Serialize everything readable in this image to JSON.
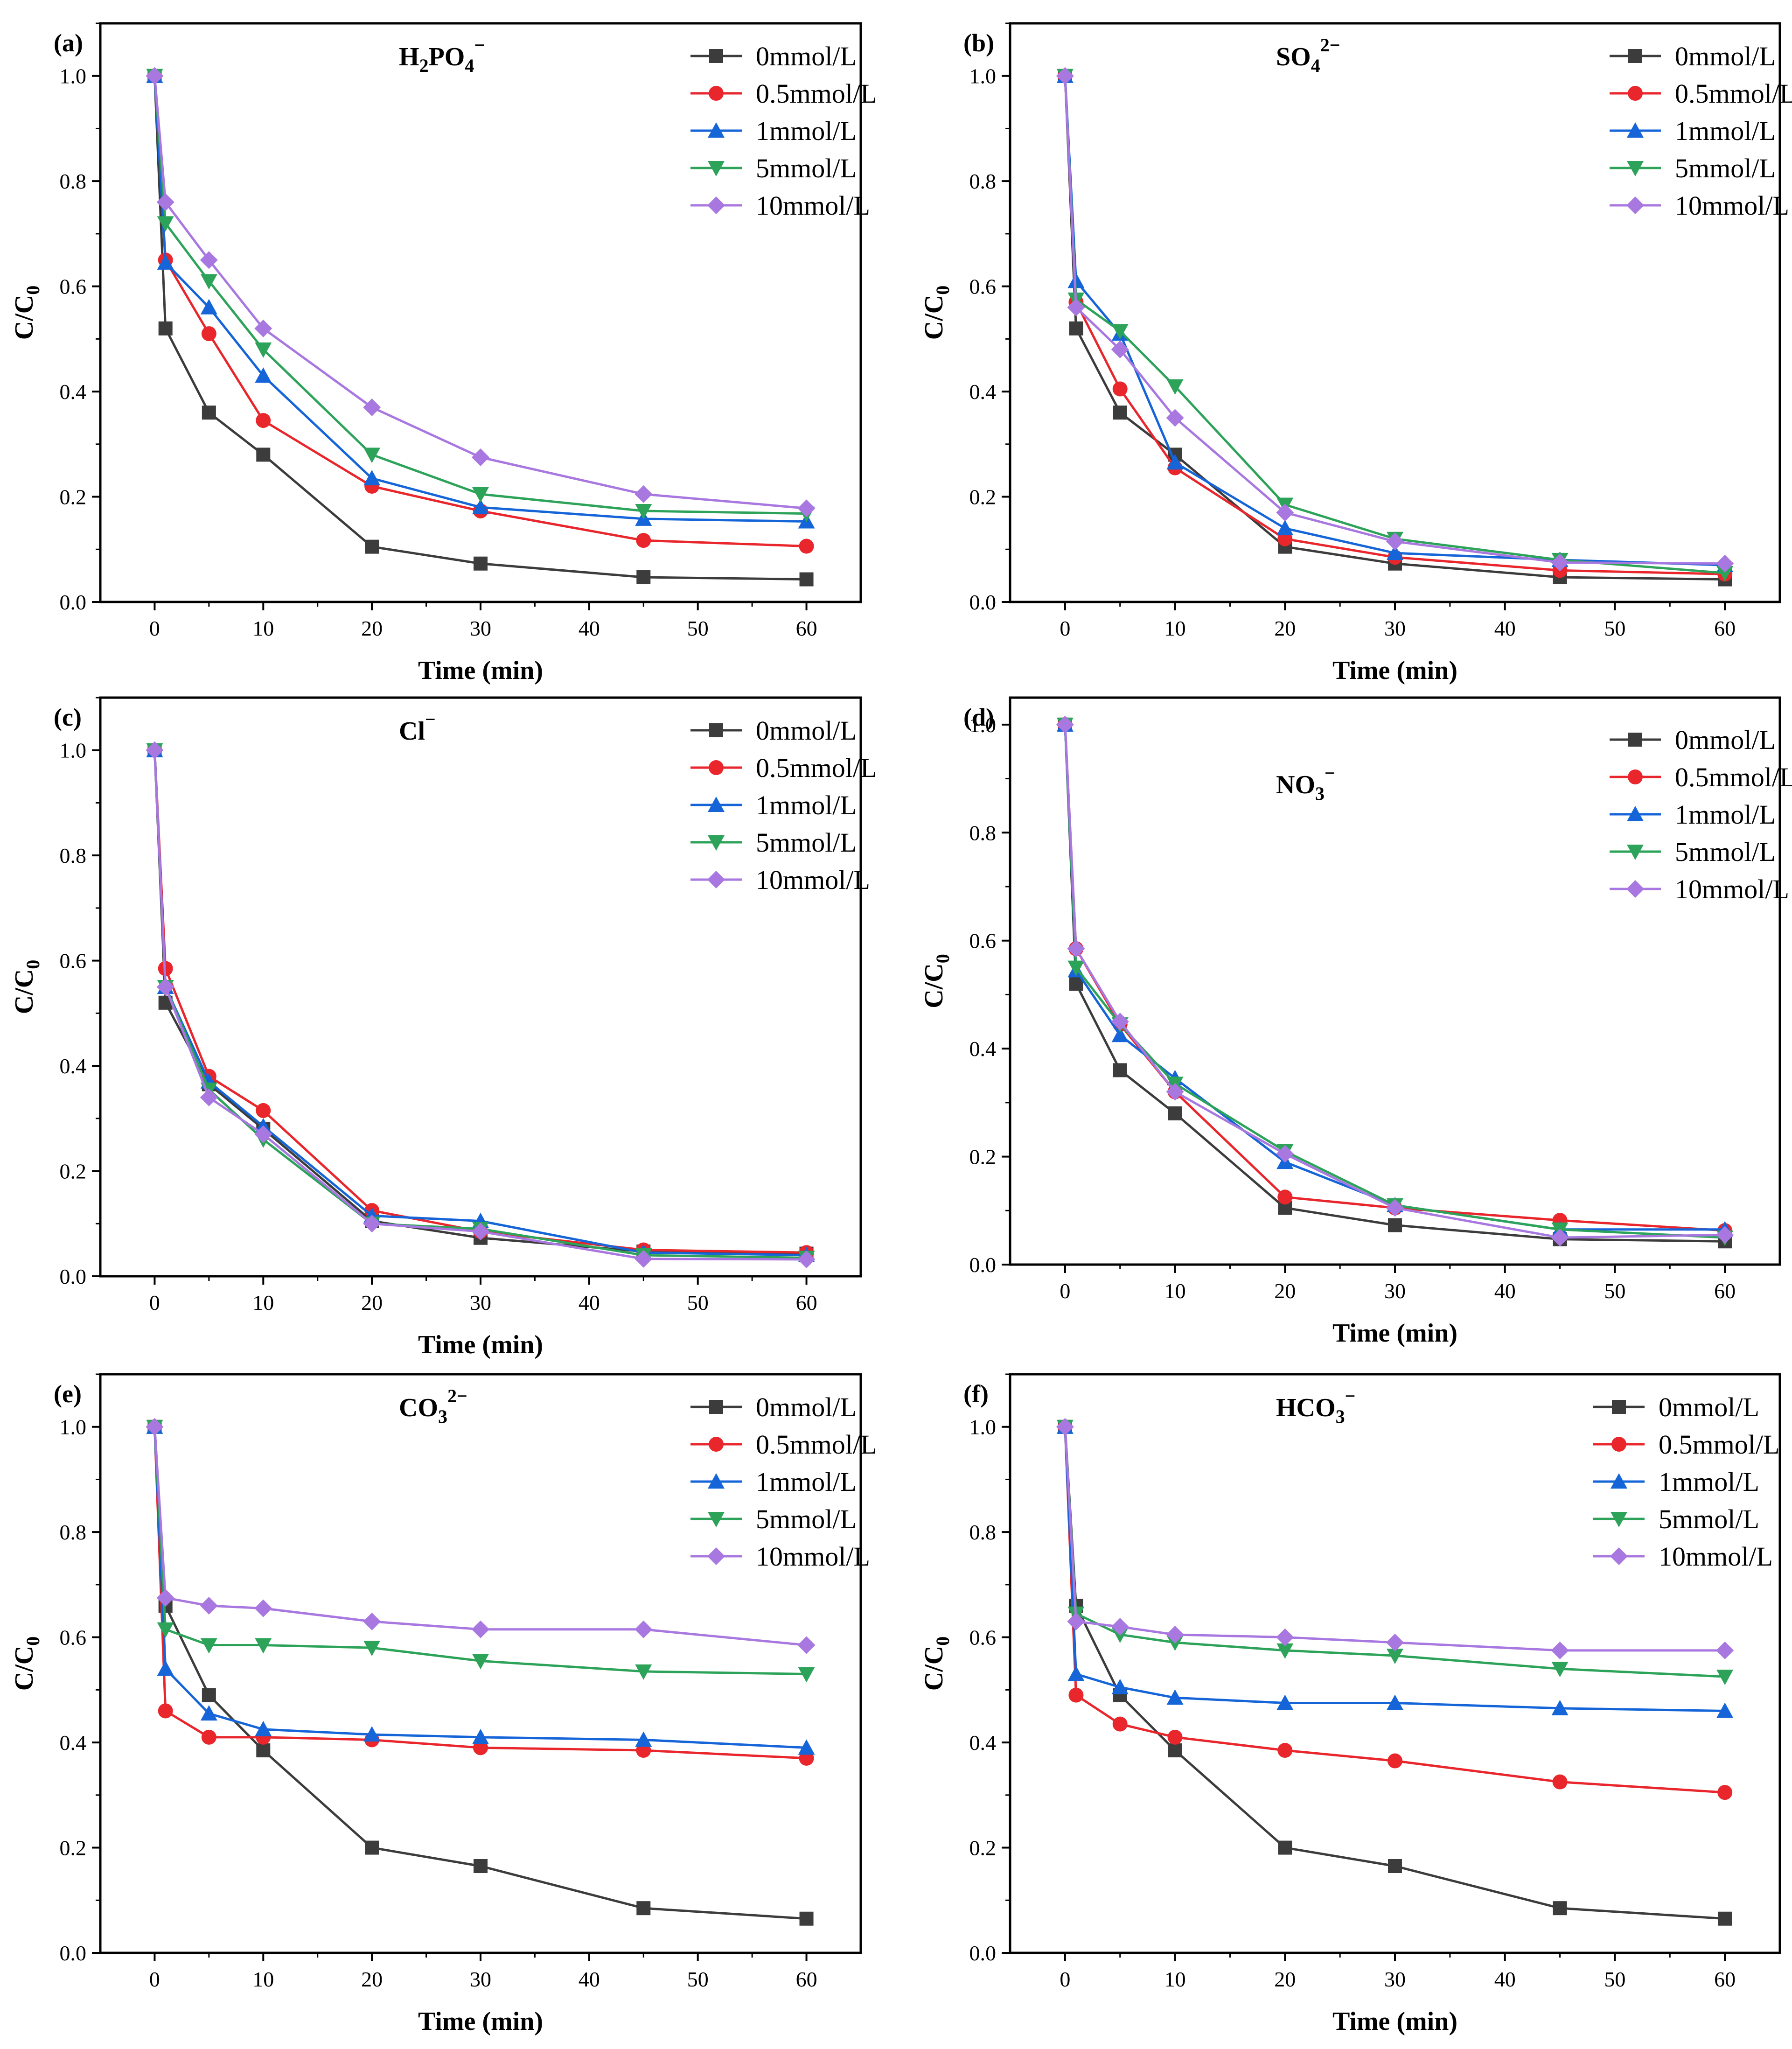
{
  "figure": {
    "colors": {
      "0mmol/L": "#3c3c3c",
      "0.5mmol/L": "#e8262c",
      "1mmol/L": "#1565d8",
      "5mmol/L": "#2da35a",
      "10mmol/L": "#a878e0"
    },
    "markers": {
      "0mmol/L": "square",
      "0.5mmol/L": "circle",
      "1mmol/L": "triangle-up",
      "5mmol/L": "triangle-down",
      "10mmol/L": "diamond"
    }
  },
  "chart_data": [
    {
      "type": "line",
      "panel": "(a)",
      "title": "H2PO4−",
      "title_parts": {
        "base": "H",
        "sub1": "2",
        "mid": "PO",
        "sub2": "4",
        "sup": "−"
      },
      "xlabel": "Time (min)",
      "ylabel": "C/C0",
      "xlim": [
        -5,
        65
      ],
      "ylim": [
        0,
        1.1
      ],
      "xticks": [
        0,
        10,
        20,
        30,
        40,
        50,
        60
      ],
      "yticks": [
        0.0,
        0.2,
        0.4,
        0.6,
        0.8,
        1.0
      ],
      "xtick_labels": [
        "0",
        "10",
        "20",
        "30",
        "40",
        "50",
        "60"
      ],
      "ytick_labels": [
        "0.0",
        "0.2",
        "0.4",
        "0.6",
        "0.8",
        "1.0"
      ],
      "legend": "top-right",
      "x": [
        0,
        1,
        5,
        10,
        20,
        30,
        45,
        60
      ],
      "series": [
        {
          "name": "0mmol/L",
          "values": [
            1.0,
            0.52,
            0.36,
            0.28,
            0.105,
            0.073,
            0.047,
            0.043
          ]
        },
        {
          "name": "0.5mmol/L",
          "values": [
            1.0,
            0.65,
            0.51,
            0.345,
            0.22,
            0.173,
            0.117,
            0.106
          ]
        },
        {
          "name": "1mmol/L",
          "values": [
            1.0,
            0.645,
            0.56,
            0.43,
            0.235,
            0.18,
            0.158,
            0.153
          ]
        },
        {
          "name": "5mmol/L",
          "values": [
            1.0,
            0.72,
            0.61,
            0.48,
            0.28,
            0.205,
            0.173,
            0.168
          ]
        },
        {
          "name": "10mmol/L",
          "values": [
            1.0,
            0.76,
            0.65,
            0.52,
            0.37,
            0.275,
            0.205,
            0.178
          ]
        }
      ]
    },
    {
      "type": "line",
      "panel": "(b)",
      "title": "SO42−",
      "title_parts": {
        "base": "SO",
        "sub1": "4",
        "mid": "",
        "sub2": "",
        "sup": "2−"
      },
      "xlabel": "Time (min)",
      "ylabel": "C/C0",
      "xlim": [
        -5,
        65
      ],
      "ylim": [
        0,
        1.1
      ],
      "xticks": [
        0,
        10,
        20,
        30,
        40,
        50,
        60
      ],
      "yticks": [
        0.0,
        0.2,
        0.4,
        0.6,
        0.8,
        1.0
      ],
      "xtick_labels": [
        "0",
        "10",
        "20",
        "30",
        "40",
        "50",
        "60"
      ],
      "ytick_labels": [
        "0.0",
        "0.2",
        "0.4",
        "0.6",
        "0.8",
        "1.0"
      ],
      "legend": "top-right",
      "x": [
        0,
        1,
        5,
        10,
        20,
        30,
        45,
        60
      ],
      "series": [
        {
          "name": "0mmol/L",
          "values": [
            1.0,
            0.52,
            0.36,
            0.28,
            0.105,
            0.073,
            0.047,
            0.043
          ]
        },
        {
          "name": "0.5mmol/L",
          "values": [
            1.0,
            0.57,
            0.405,
            0.255,
            0.12,
            0.085,
            0.06,
            0.053
          ]
        },
        {
          "name": "1mmol/L",
          "values": [
            1.0,
            0.61,
            0.51,
            0.265,
            0.14,
            0.093,
            0.08,
            0.07
          ]
        },
        {
          "name": "5mmol/L",
          "values": [
            1.0,
            0.575,
            0.515,
            0.41,
            0.185,
            0.12,
            0.08,
            0.055
          ]
        },
        {
          "name": "10mmol/L",
          "values": [
            1.0,
            0.56,
            0.48,
            0.35,
            0.17,
            0.115,
            0.075,
            0.073
          ]
        }
      ]
    },
    {
      "type": "line",
      "panel": "(c)",
      "title": "Cl−",
      "title_parts": {
        "base": "Cl",
        "sub1": "",
        "mid": "",
        "sub2": "",
        "sup": "−"
      },
      "xlabel": "Time (min)",
      "ylabel": "C/C0",
      "xlim": [
        -5,
        65
      ],
      "ylim": [
        0,
        1.1
      ],
      "xticks": [
        0,
        10,
        20,
        30,
        40,
        50,
        60
      ],
      "yticks": [
        0.0,
        0.2,
        0.4,
        0.6,
        0.8,
        1.0
      ],
      "xtick_labels": [
        "0",
        "10",
        "20",
        "30",
        "40",
        "50",
        "60"
      ],
      "ytick_labels": [
        "0.0",
        "0.2",
        "0.4",
        "0.6",
        "0.8",
        "1.0"
      ],
      "legend": "top-right",
      "x": [
        0,
        1,
        5,
        10,
        20,
        30,
        45,
        60
      ],
      "series": [
        {
          "name": "0mmol/L",
          "values": [
            1.0,
            0.52,
            0.365,
            0.28,
            0.105,
            0.073,
            0.047,
            0.043
          ]
        },
        {
          "name": "0.5mmol/L",
          "values": [
            1.0,
            0.585,
            0.38,
            0.315,
            0.125,
            0.085,
            0.05,
            0.045
          ]
        },
        {
          "name": "1mmol/L",
          "values": [
            1.0,
            0.55,
            0.37,
            0.285,
            0.115,
            0.105,
            0.045,
            0.04
          ]
        },
        {
          "name": "5mmol/L",
          "values": [
            1.0,
            0.55,
            0.355,
            0.26,
            0.1,
            0.09,
            0.04,
            0.035
          ]
        },
        {
          "name": "10mmol/L",
          "values": [
            1.0,
            0.55,
            0.34,
            0.27,
            0.1,
            0.085,
            0.033,
            0.032
          ]
        }
      ]
    },
    {
      "type": "line",
      "panel": "(d)",
      "title": "NO3−",
      "title_parts": {
        "base": "NO",
        "sub1": "3",
        "mid": "",
        "sub2": "",
        "sup": "−"
      },
      "xlabel": "Time (min)",
      "ylabel": "C/C0",
      "xlim": [
        -5,
        65
      ],
      "ylim": [
        0,
        1.05
      ],
      "xticks": [
        0,
        10,
        20,
        30,
        40,
        50,
        60
      ],
      "yticks": [
        0.0,
        0.2,
        0.4,
        0.6,
        0.8,
        1.0
      ],
      "xtick_labels": [
        "0",
        "10",
        "20",
        "30",
        "40",
        "50",
        "60"
      ],
      "ytick_labels": [
        "0.0",
        "0.2",
        "0.4",
        "0.6",
        "0.8",
        "1.0"
      ],
      "legend": "top-right",
      "x": [
        0,
        1,
        5,
        10,
        20,
        30,
        45,
        60
      ],
      "series": [
        {
          "name": "0mmol/L",
          "values": [
            1.0,
            0.52,
            0.36,
            0.28,
            0.105,
            0.073,
            0.047,
            0.043
          ]
        },
        {
          "name": "0.5mmol/L",
          "values": [
            1.0,
            0.585,
            0.445,
            0.32,
            0.125,
            0.105,
            0.082,
            0.063
          ]
        },
        {
          "name": "1mmol/L",
          "values": [
            1.0,
            0.545,
            0.425,
            0.345,
            0.19,
            0.11,
            0.065,
            0.065
          ]
        },
        {
          "name": "5mmol/L",
          "values": [
            1.0,
            0.55,
            0.445,
            0.335,
            0.21,
            0.11,
            0.065,
            0.05
          ]
        },
        {
          "name": "10mmol/L",
          "values": [
            1.0,
            0.585,
            0.45,
            0.32,
            0.205,
            0.105,
            0.05,
            0.055
          ]
        }
      ]
    },
    {
      "type": "line",
      "panel": "(e)",
      "title": "CO32−",
      "title_parts": {
        "base": "CO",
        "sub1": "3",
        "mid": "",
        "sub2": "",
        "sup": "2−"
      },
      "xlabel": "Time (min)",
      "ylabel": "C/C0",
      "xlim": [
        -5,
        65
      ],
      "ylim": [
        0,
        1.1
      ],
      "xticks": [
        0,
        10,
        20,
        30,
        40,
        50,
        60
      ],
      "yticks": [
        0.0,
        0.2,
        0.4,
        0.6,
        0.8,
        1.0
      ],
      "xtick_labels": [
        "0",
        "10",
        "20",
        "30",
        "40",
        "50",
        "60"
      ],
      "ytick_labels": [
        "0.0",
        "0.2",
        "0.4",
        "0.6",
        "0.8",
        "1.0"
      ],
      "legend": "top-right",
      "x": [
        0,
        1,
        5,
        10,
        20,
        30,
        45,
        60
      ],
      "series": [
        {
          "name": "0mmol/L",
          "values": [
            1.0,
            0.66,
            0.49,
            0.385,
            0.2,
            0.165,
            0.085,
            0.065
          ]
        },
        {
          "name": "0.5mmol/L",
          "values": [
            1.0,
            0.46,
            0.41,
            0.41,
            0.405,
            0.39,
            0.385,
            0.37
          ]
        },
        {
          "name": "1mmol/L",
          "values": [
            1.0,
            0.54,
            0.455,
            0.425,
            0.415,
            0.41,
            0.405,
            0.39
          ]
        },
        {
          "name": "5mmol/L",
          "values": [
            1.0,
            0.615,
            0.585,
            0.585,
            0.58,
            0.555,
            0.535,
            0.53
          ]
        },
        {
          "name": "10mmol/L",
          "values": [
            1.0,
            0.675,
            0.66,
            0.655,
            0.63,
            0.615,
            0.615,
            0.585
          ]
        }
      ]
    },
    {
      "type": "line",
      "panel": "(f)",
      "title": "HCO3−",
      "title_parts": {
        "base": "HCO",
        "sub1": "3",
        "mid": "",
        "sub2": "",
        "sup": "−"
      },
      "xlabel": "Time (min)",
      "ylabel": "C/C0",
      "xlim": [
        -5,
        65
      ],
      "ylim": [
        0,
        1.1
      ],
      "xticks": [
        0,
        10,
        20,
        30,
        40,
        50,
        60
      ],
      "yticks": [
        0.0,
        0.2,
        0.4,
        0.6,
        0.8,
        1.0
      ],
      "xtick_labels": [
        "0",
        "10",
        "20",
        "30",
        "40",
        "50",
        "60"
      ],
      "ytick_labels": [
        "0.0",
        "0.2",
        "0.4",
        "0.6",
        "0.8",
        "1.0"
      ],
      "legend": "top-right",
      "x": [
        0,
        1,
        5,
        10,
        20,
        30,
        45,
        60
      ],
      "series": [
        {
          "name": "0mmol/L",
          "values": [
            1.0,
            0.66,
            0.49,
            0.385,
            0.2,
            0.165,
            0.085,
            0.065
          ]
        },
        {
          "name": "0.5mmol/L",
          "values": [
            1.0,
            0.49,
            0.435,
            0.41,
            0.385,
            0.365,
            0.325,
            0.305
          ]
        },
        {
          "name": "1mmol/L",
          "values": [
            1.0,
            0.53,
            0.505,
            0.485,
            0.475,
            0.475,
            0.465,
            0.46
          ]
        },
        {
          "name": "5mmol/L",
          "values": [
            1.0,
            0.645,
            0.605,
            0.59,
            0.575,
            0.565,
            0.54,
            0.525
          ]
        },
        {
          "name": "10mmol/L",
          "values": [
            1.0,
            0.63,
            0.62,
            0.605,
            0.6,
            0.59,
            0.575,
            0.575
          ]
        }
      ]
    }
  ]
}
